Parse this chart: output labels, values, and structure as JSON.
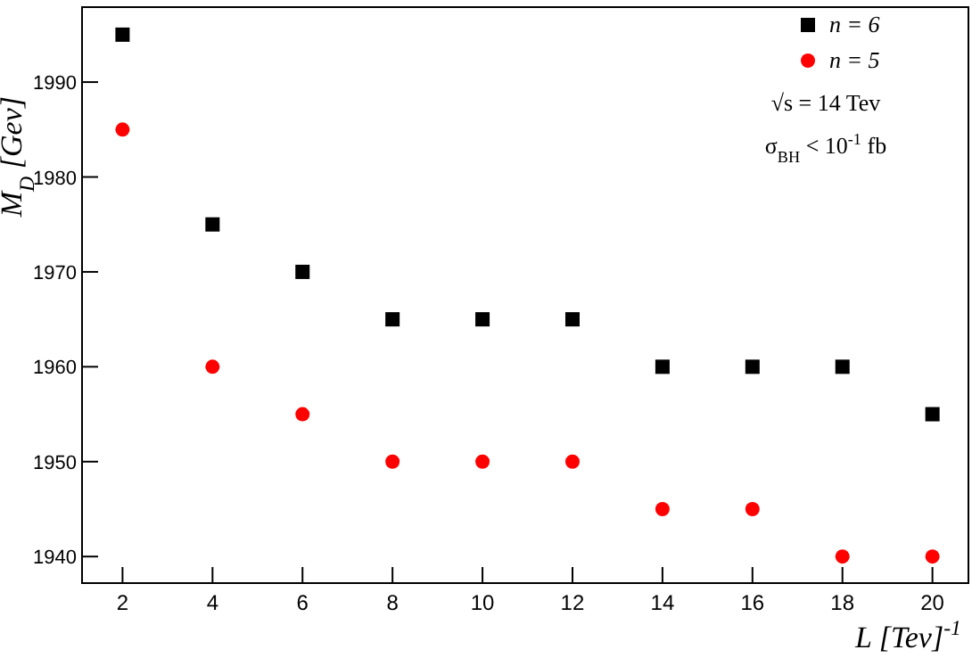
{
  "chart_data": {
    "type": "scatter",
    "xlabel": "L [Tev]$^{-1}$",
    "ylabel": "M$_{D}$ [Gev]",
    "x": [
      2,
      4,
      6,
      8,
      10,
      12,
      14,
      16,
      18,
      20
    ],
    "series": [
      {
        "name": "n = 6",
        "color": "#000000",
        "marker": "square",
        "values": [
          1995,
          1975,
          1970,
          1965,
          1965,
          1965,
          1960,
          1960,
          1960,
          1955
        ]
      },
      {
        "name": "n = 5",
        "color": "#ff0000",
        "marker": "circle",
        "values": [
          1985,
          1960,
          1955,
          1950,
          1950,
          1950,
          1945,
          1945,
          1940,
          1940
        ]
      }
    ],
    "xlim": [
      1.1,
      20.8
    ],
    "xticks": [
      2,
      4,
      6,
      8,
      10,
      12,
      14,
      16,
      18,
      20
    ],
    "ylim": [
      1937.2,
      1997.9
    ],
    "yticks": [
      1940,
      1950,
      1960,
      1970,
      1980,
      1990
    ],
    "grid": false,
    "legend": "top right",
    "annotations": [
      "√s = 14 Tev",
      "σ$_{BH}$ < 10$^{-1}$ fb"
    ]
  }
}
